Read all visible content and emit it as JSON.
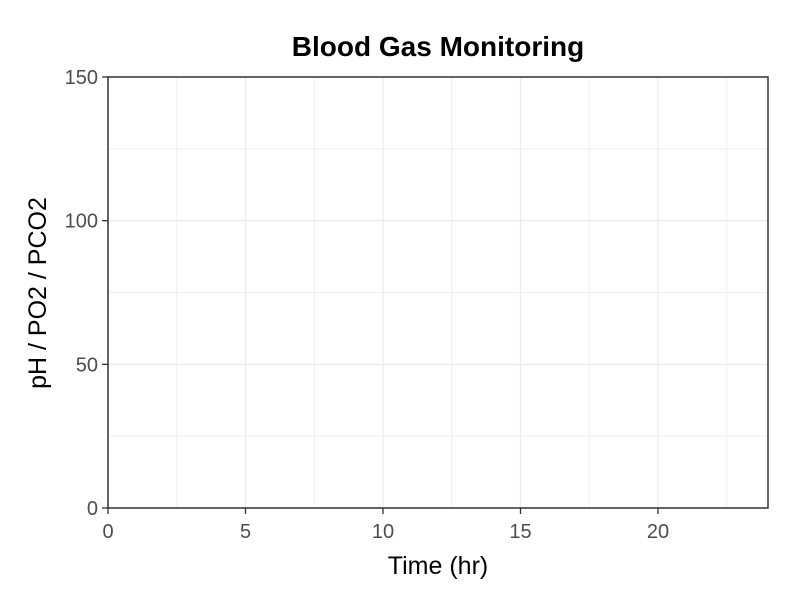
{
  "chart_data": {
    "type": "line",
    "title": "Blood Gas Monitoring",
    "xlabel": "Time (hr)",
    "ylabel": "pH / PO2 / PCO2",
    "xlim": [
      0,
      24
    ],
    "ylim": [
      0,
      150
    ],
    "x_ticks": [
      0,
      5,
      10,
      15,
      20
    ],
    "y_ticks": [
      0,
      50,
      100,
      150
    ],
    "x_minor_ticks": [
      2.5,
      7.5,
      12.5,
      17.5,
      22.5
    ],
    "y_minor_ticks": [
      25,
      75,
      125
    ],
    "grid": true,
    "series": [],
    "colors": {
      "grid": "#ebebeb",
      "axis": "#333333",
      "tick_label": "#4d4d4d"
    }
  }
}
